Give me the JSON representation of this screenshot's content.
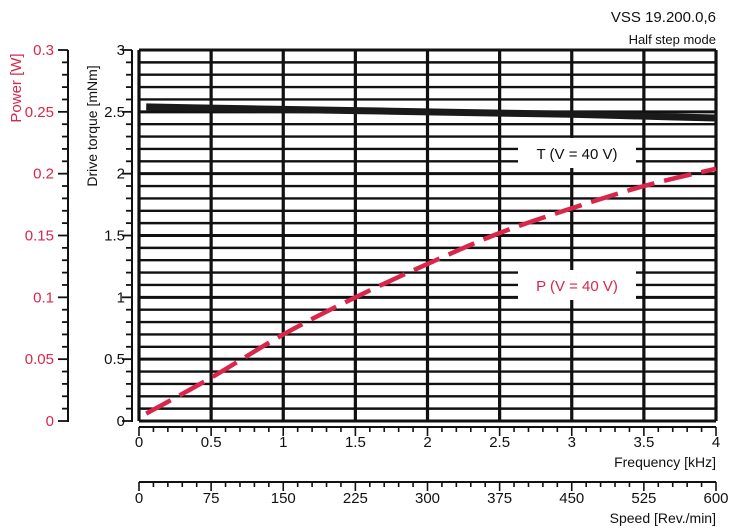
{
  "chart_data": {
    "type": "line",
    "title": "VSS 19.200.0,6",
    "subtitle": "Half step mode",
    "x": [
      0.05,
      0.5,
      1,
      1.5,
      2,
      2.5,
      3,
      3.5,
      4
    ],
    "series": [
      {
        "name": "T (V = 40 V)",
        "axis": "torque",
        "values": [
          2.54,
          2.53,
          2.52,
          2.51,
          2.5,
          2.49,
          2.48,
          2.465,
          2.45
        ]
      },
      {
        "name": "P (V = 40 V)",
        "axis": "power",
        "values": [
          0.006,
          0.035,
          0.07,
          0.1,
          0.127,
          0.152,
          0.172,
          0.19,
          0.204
        ]
      }
    ],
    "x_axis": {
      "label": "Frequency [kHz]",
      "range": [
        0,
        4
      ],
      "ticks": [
        "0",
        "0.5",
        "1",
        "1.5",
        "2",
        "2.5",
        "3",
        "3.5",
        "4"
      ]
    },
    "speed_axis": {
      "label": "Speed [Rev./min]",
      "range": [
        0,
        600
      ],
      "ticks": [
        "0",
        "75",
        "150",
        "225",
        "300",
        "375",
        "450",
        "525",
        "600"
      ]
    },
    "torque_axis": {
      "label": "Drive torque [mNm]",
      "range": [
        0,
        3
      ],
      "ticks": [
        "0",
        "0.5",
        "1",
        "1.5",
        "2",
        "2.5",
        "3"
      ]
    },
    "power_axis": {
      "label": "Power [W]",
      "range": [
        0,
        0.3
      ],
      "ticks": [
        "0",
        "0.05",
        "0.1",
        "0.15",
        "0.2",
        "0.25",
        "0.3"
      ]
    },
    "grid": true,
    "colors": {
      "torque": "#1a1a1a",
      "power": "#d9264a",
      "grid": "#111111"
    }
  }
}
